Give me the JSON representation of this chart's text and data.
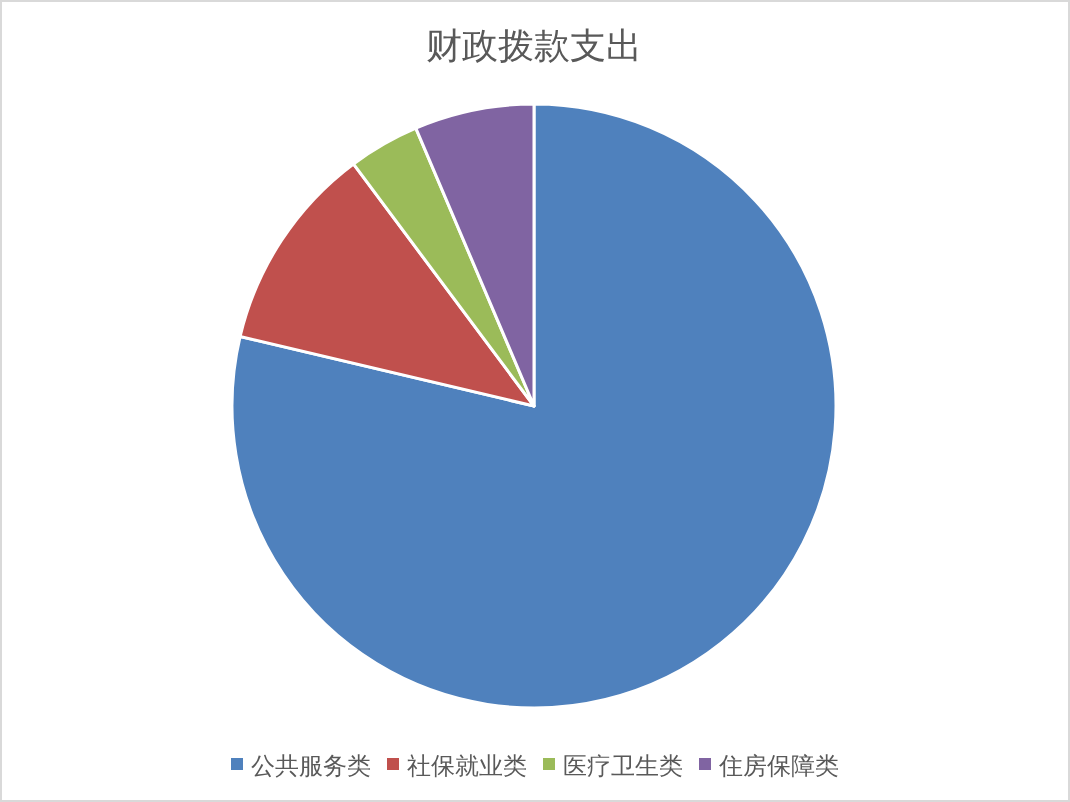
{
  "chart_data": {
    "type": "pie",
    "title": "财政拨款支出",
    "categories": [
      "公共服务类",
      "社保就业类",
      "医疗卫生类",
      "住房保障类"
    ],
    "values": [
      78.7,
      11.1,
      3.8,
      6.4
    ],
    "colors": [
      "#4f81bd",
      "#c0504d",
      "#9bbb59",
      "#8064a2"
    ],
    "legend": "bottom"
  }
}
